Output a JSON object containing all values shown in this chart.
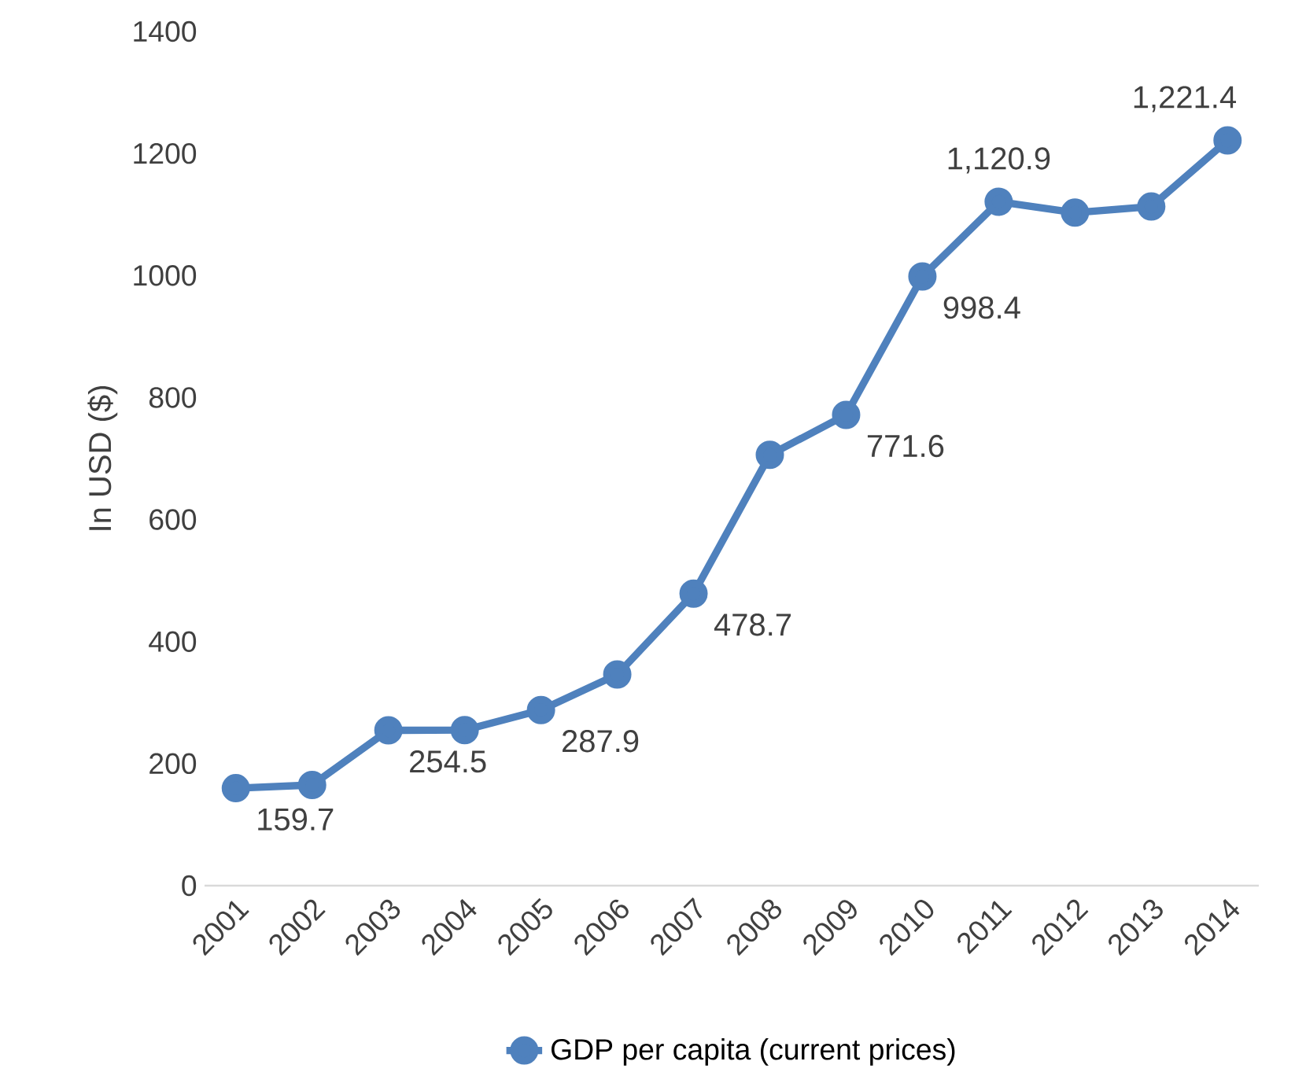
{
  "chart_data": {
    "type": "line",
    "ylabel": "In USD ($)",
    "categories": [
      "2001",
      "2002",
      "2003",
      "2004",
      "2005",
      "2006",
      "2007",
      "2008",
      "2009",
      "2010",
      "2011",
      "2012",
      "2013",
      "2014"
    ],
    "series": [
      {
        "name": "GDP per capita (current prices)",
        "color": "#4f81bd",
        "values": [
          159.7,
          165,
          254.5,
          255,
          287.9,
          346,
          478.7,
          706,
          771.6,
          998.4,
          1120.9,
          1103,
          1113,
          1221.4
        ],
        "value_labels": [
          "159.7",
          null,
          "254.5",
          null,
          "287.9",
          null,
          "478.7",
          null,
          "771.6",
          "998.4",
          "1,120.9",
          null,
          null,
          "1,221.4"
        ]
      }
    ],
    "ylim": [
      0,
      1400
    ],
    "yticks": [
      0,
      200,
      400,
      600,
      800,
      1000,
      1200,
      1400
    ],
    "grid": false,
    "legend": "bottom",
    "marker": "circle",
    "line_style": "solid"
  }
}
